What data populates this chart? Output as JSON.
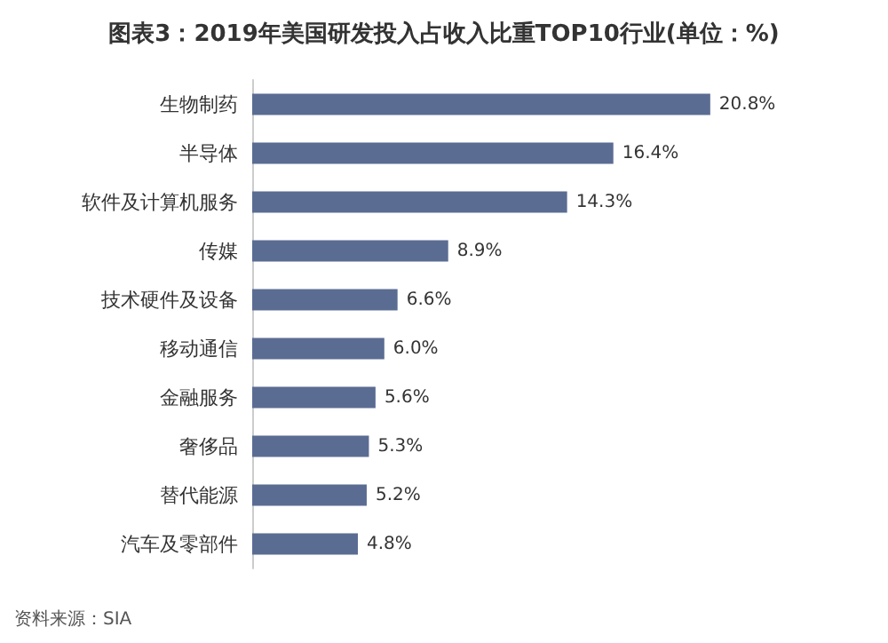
{
  "chart_data": {
    "type": "bar",
    "orientation": "horizontal",
    "title": "图表3：2019年美国研发投入占收入比重TOP10行业(单位：%)",
    "categories": [
      "生物制药",
      "半导体",
      "软件及计算机服务",
      "传媒",
      "技术硬件及设备",
      "移动通信",
      "金融服务",
      "奢侈品",
      "替代能源",
      "汽车及零部件"
    ],
    "values": [
      20.8,
      16.4,
      14.3,
      8.9,
      6.6,
      6.0,
      5.6,
      5.3,
      5.2,
      4.8
    ],
    "value_labels": [
      "20.8%",
      "16.4%",
      "14.3%",
      "8.9%",
      "6.6%",
      "6.0%",
      "5.6%",
      "5.3%",
      "5.2%",
      "4.8%"
    ],
    "color": "#5b6c93",
    "tick_labels": "y",
    "annotations": [
      "资料来源：SIA"
    ]
  }
}
